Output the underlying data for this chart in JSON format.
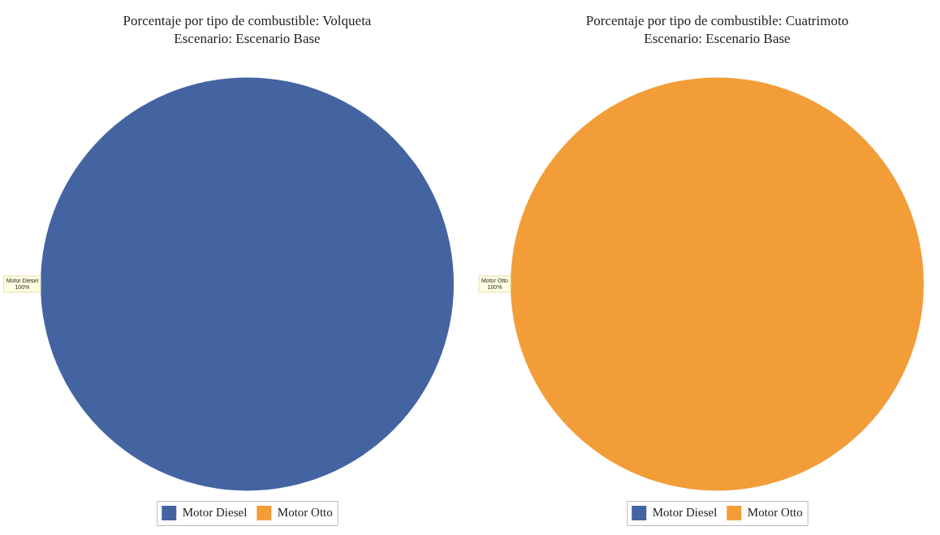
{
  "chart_data": [
    {
      "type": "pie",
      "title": "Porcentaje por tipo de combustible: Volqueta",
      "subtitle": "Escenario: Escenario Base",
      "categories": [
        "Motor Diesel",
        "Motor Otto"
      ],
      "values": [
        100,
        0
      ],
      "colors": [
        "#4364a1",
        "#f29d38"
      ],
      "value_labels": [
        "100%",
        null
      ],
      "legend": "bottom"
    },
    {
      "type": "pie",
      "title": "Porcentaje por tipo de combustible: Cuatrimoto",
      "subtitle": "Escenario: Escenario Base",
      "categories": [
        "Motor Diesel",
        "Motor Otto"
      ],
      "values": [
        0,
        100
      ],
      "colors": [
        "#4364a1",
        "#f29d38"
      ],
      "value_labels": [
        null,
        "100%"
      ],
      "legend": "bottom"
    }
  ]
}
